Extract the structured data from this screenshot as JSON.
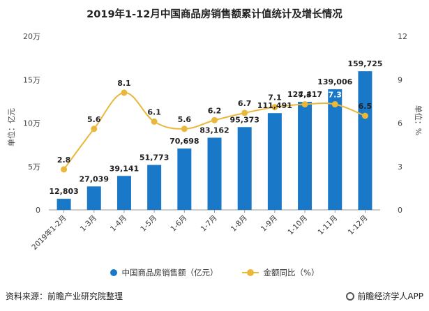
{
  "title": "2019年1-12月中国商品房销售额累计值统计及增长情况",
  "chart_data": {
    "type": "bar",
    "categories": [
      "2019年1-2月",
      "1-3月",
      "1-4月",
      "1-5月",
      "1-6月",
      "1-7月",
      "1-8月",
      "1-9月",
      "1-10月",
      "1-11月",
      "1-12月"
    ],
    "series": [
      {
        "name": "中国商品房销售额（亿元）",
        "type": "bar",
        "axis": "left",
        "color": "#1a78c8",
        "values": [
          12803,
          27039,
          39141,
          51773,
          70698,
          83162,
          95373,
          111491,
          124417,
          139006,
          159725
        ],
        "labels": [
          "12,803",
          "27,039",
          "39,141",
          "51,773",
          "70,698",
          "83,162",
          "95,373",
          "111,491",
          "124,417",
          "139,006",
          "159,725"
        ]
      },
      {
        "name": "金额同比（%）",
        "type": "line",
        "axis": "right",
        "color": "#e9b73a",
        "values": [
          2.8,
          5.6,
          8.1,
          6.1,
          5.6,
          6.2,
          6.7,
          7.1,
          7.3,
          7.3,
          6.5
        ],
        "labels": [
          "2.8",
          "5.6",
          "8.1",
          "6.1",
          "5.6",
          "6.2",
          "6.7",
          "7.1",
          "7.3",
          "7.3",
          "6.5"
        ]
      }
    ],
    "y_left": {
      "label": "单位：亿元",
      "range": [
        0,
        200000
      ],
      "ticks": [
        0,
        50000,
        100000,
        150000,
        200000
      ],
      "tick_labels": [
        "0",
        "5万",
        "10万",
        "15万",
        "20万"
      ]
    },
    "y_right": {
      "label": "单位：%",
      "range": [
        0,
        12
      ],
      "ticks": [
        0,
        3,
        6,
        9,
        12
      ],
      "tick_labels": [
        "0",
        "3",
        "6",
        "9",
        "12"
      ]
    },
    "grid": false,
    "legend_position": "bottom"
  },
  "footer": {
    "source": "资料来源：前瞻产业研究院整理",
    "brand": "前瞻经济学人APP"
  }
}
